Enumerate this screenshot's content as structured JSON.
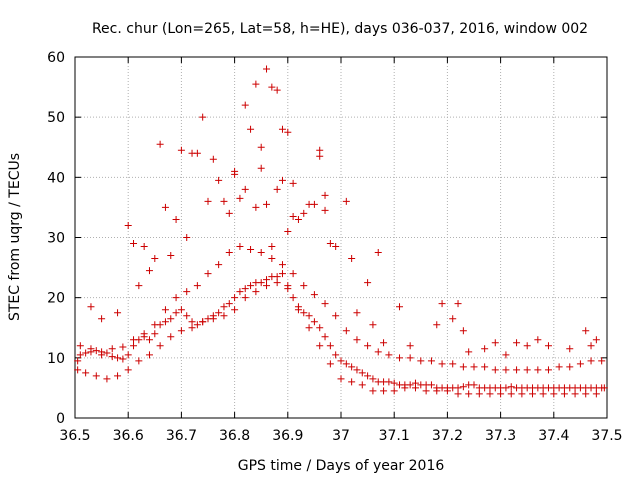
{
  "chart_data": {
    "type": "scatter",
    "title": "Rec. chur (Lon=265, Lat=58, h=HE), days 036-037, 2016, window 002",
    "xlabel": "GPS time / Days of year 2016",
    "ylabel": "STEC from uqrg / TECUs",
    "xlim": [
      36.5,
      37.5
    ],
    "ylim": [
      0,
      60
    ],
    "xticks": [
      "36.5",
      "36.6",
      "36.7",
      "36.8",
      "36.9",
      "37",
      "37.1",
      "37.2",
      "37.3",
      "37.4",
      "37.5"
    ],
    "yticks": [
      "0",
      "10",
      "20",
      "30",
      "40",
      "50",
      "60"
    ],
    "grid": true,
    "marker": "plus",
    "color": "#cc0000",
    "x": [
      36.505,
      36.51,
      36.52,
      36.53,
      36.54,
      36.55,
      36.56,
      36.57,
      36.58,
      36.59,
      36.6,
      36.61,
      36.62,
      36.63,
      36.64,
      36.65,
      36.66,
      36.67,
      36.68,
      36.69,
      36.7,
      36.71,
      36.72,
      36.73,
      36.74,
      36.75,
      36.76,
      36.77,
      36.78,
      36.79,
      36.8,
      36.81,
      36.82,
      36.83,
      36.84,
      36.85,
      36.86,
      36.87,
      36.88,
      36.89,
      36.9,
      36.91,
      36.92,
      36.93,
      36.94,
      36.95,
      36.96,
      36.97,
      36.98,
      36.99,
      37.0,
      37.01,
      37.02,
      37.03,
      37.04,
      37.05,
      37.06,
      37.07,
      37.08,
      37.09,
      37.1,
      37.11,
      37.12,
      37.13,
      37.14,
      37.15,
      37.16,
      37.17,
      37.18,
      37.19,
      37.2,
      37.21,
      37.22,
      37.23,
      37.24,
      37.25,
      37.26,
      37.27,
      37.28,
      37.29,
      37.3,
      37.31,
      37.32,
      37.33,
      37.34,
      37.35,
      37.36,
      37.37,
      37.38,
      37.39,
      37.4,
      37.41,
      37.42,
      37.43,
      37.44,
      37.45,
      37.46,
      37.47,
      37.48,
      37.49,
      37.495,
      36.505,
      36.52,
      36.54,
      36.56,
      36.58,
      36.6,
      36.62,
      36.64,
      36.66,
      36.68,
      36.7,
      36.72,
      36.74,
      36.76,
      36.78,
      36.8,
      36.82,
      36.84,
      36.86,
      36.88,
      36.9,
      36.92,
      36.94,
      36.96,
      36.98,
      37.0,
      37.02,
      37.04,
      37.06,
      37.08,
      37.1,
      37.12,
      37.14,
      37.16,
      37.18,
      37.2,
      37.22,
      37.24,
      37.26,
      37.28,
      37.3,
      37.32,
      37.34,
      37.36,
      37.38,
      37.4,
      37.42,
      37.44,
      37.46,
      37.48,
      36.51,
      36.53,
      36.55,
      36.57,
      36.59,
      36.61,
      36.63,
      36.65,
      36.67,
      36.69,
      36.71,
      36.73,
      36.75,
      36.77,
      36.79,
      36.81,
      36.83,
      36.85,
      36.87,
      36.89,
      36.91,
      36.93,
      36.95,
      36.97,
      36.99,
      37.01,
      37.03,
      37.05,
      37.07,
      37.09,
      37.11,
      37.13,
      37.15,
      37.17,
      37.19,
      37.21,
      37.23,
      37.25,
      37.27,
      37.29,
      37.31,
      37.33,
      37.35,
      37.37,
      37.39,
      37.41,
      37.43,
      37.45,
      37.47,
      37.49,
      36.53,
      36.55,
      36.6,
      36.61,
      36.63,
      36.65,
      36.66,
      36.67,
      36.7,
      36.72,
      36.73,
      36.74,
      36.76,
      36.77,
      36.8,
      36.81,
      36.82,
      36.83,
      36.84,
      36.85,
      36.86,
      36.87,
      36.88,
      36.89,
      36.9,
      36.91,
      36.93,
      36.95,
      36.96,
      36.97,
      36.98,
      37.01,
      37.02,
      37.05,
      37.07,
      37.11,
      37.19,
      37.21,
      37.22,
      37.23,
      37.29,
      37.33,
      37.37,
      37.46,
      37.48,
      36.58,
      36.62,
      36.64,
      36.68,
      36.69,
      36.71,
      36.75,
      36.78,
      36.79,
      36.8,
      36.82,
      36.84,
      36.85,
      36.86,
      36.87,
      36.88,
      36.89,
      36.9,
      36.91,
      36.92,
      36.94,
      36.96,
      36.97,
      36.99,
      37.03,
      37.06,
      37.08,
      37.13,
      37.18,
      37.24,
      37.27,
      37.31,
      37.35,
      37.39,
      37.43,
      37.47
    ],
    "y": [
      9.5,
      10.5,
      10.8,
      11.0,
      11.2,
      10.5,
      10.8,
      10.2,
      10.0,
      9.8,
      10.5,
      12.0,
      13.0,
      13.5,
      13.0,
      14.0,
      15.5,
      16.0,
      16.5,
      17.5,
      18.0,
      17.0,
      16.0,
      15.5,
      16.0,
      16.5,
      17.0,
      17.5,
      18.5,
      19.0,
      20.0,
      21.0,
      21.5,
      22.0,
      22.5,
      22.5,
      23.0,
      23.5,
      23.5,
      24.0,
      22.0,
      20.0,
      18.5,
      17.5,
      17.0,
      16.0,
      15.0,
      13.5,
      12.0,
      10.5,
      9.5,
      9.0,
      8.5,
      8.0,
      7.5,
      7.0,
      6.5,
      6.0,
      6.0,
      6.0,
      5.8,
      5.5,
      5.5,
      5.5,
      5.8,
      5.5,
      5.5,
      5.5,
      5.0,
      5.0,
      5.0,
      5.0,
      5.0,
      5.2,
      5.5,
      5.5,
      5.0,
      5.0,
      5.0,
      5.0,
      5.0,
      5.0,
      5.2,
      5.0,
      5.0,
      5.0,
      5.0,
      5.0,
      5.0,
      5.0,
      5.0,
      5.0,
      5.0,
      5.0,
      5.0,
      5.0,
      5.0,
      5.0,
      5.0,
      5.0,
      5.0,
      8.0,
      7.5,
      7.0,
      6.5,
      7.0,
      8.0,
      9.5,
      10.5,
      12.0,
      13.5,
      14.5,
      15.0,
      16.0,
      16.5,
      17.0,
      18.0,
      20.0,
      21.0,
      22.0,
      22.5,
      21.5,
      18.0,
      15.0,
      12.0,
      9.0,
      6.5,
      6.0,
      5.5,
      4.5,
      4.5,
      4.5,
      5.0,
      5.0,
      4.5,
      4.5,
      4.5,
      4.0,
      4.0,
      4.0,
      4.0,
      4.0,
      4.0,
      4.0,
      4.0,
      4.0,
      4.0,
      4.0,
      4.0,
      4.0,
      4.0,
      12.0,
      11.5,
      11.0,
      11.5,
      11.8,
      13.0,
      14.0,
      15.5,
      18.0,
      20.0,
      21.0,
      22.0,
      24.0,
      25.5,
      27.5,
      28.5,
      28.0,
      27.5,
      26.5,
      25.5,
      24.0,
      22.0,
      20.5,
      19.0,
      17.0,
      14.5,
      13.0,
      12.0,
      11.0,
      10.5,
      10.0,
      10.0,
      9.5,
      9.5,
      9.0,
      9.0,
      8.5,
      8.5,
      8.5,
      8.0,
      8.0,
      8.0,
      8.0,
      8.0,
      8.0,
      8.5,
      8.5,
      9.0,
      9.5,
      9.5,
      18.5,
      16.5,
      32.0,
      29.0,
      28.5,
      26.5,
      45.5,
      35.0,
      44.5,
      44.0,
      44.0,
      50.0,
      43.0,
      39.5,
      40.5,
      36.5,
      52.0,
      48.0,
      55.5,
      45.0,
      58.0,
      55.0,
      54.5,
      48.0,
      47.5,
      39.0,
      34.0,
      35.5,
      44.5,
      37.0,
      29.0,
      36.0,
      26.5,
      22.5,
      27.5,
      18.5,
      19.0,
      16.5,
      19.0,
      14.5,
      12.5,
      12.5,
      13.0,
      14.5,
      13.0,
      17.5,
      22.0,
      24.5,
      27.0,
      33.0,
      30.0,
      36.0,
      36.0,
      34.0,
      41.0,
      38.0,
      35.0,
      41.5,
      35.5,
      28.5,
      38.0,
      39.5,
      31.0,
      33.5,
      33.0,
      35.5,
      43.5,
      34.5,
      28.5,
      17.5,
      15.5,
      12.5,
      12.0,
      15.5,
      11.0,
      11.5,
      10.5,
      12.0,
      12.0,
      11.5,
      12.0
    ]
  }
}
